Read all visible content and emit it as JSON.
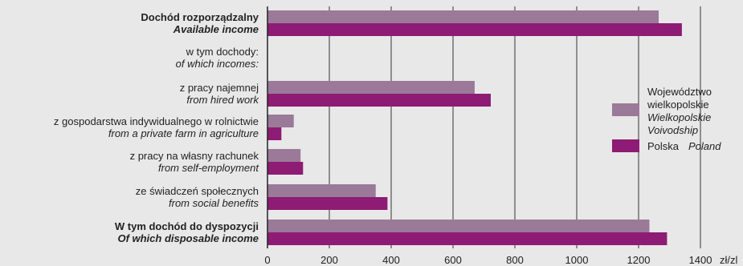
{
  "chart_data": {
    "type": "bar",
    "orientation": "horizontal",
    "categories": [
      {
        "pl": "Dochód rozporządzalny",
        "en": "Available income",
        "bold": true
      },
      {
        "pl": "w tym dochody:",
        "en": "of which incomes:",
        "bold": false,
        "header": true
      },
      {
        "pl": "z pracy najemnej",
        "en": "from hired work",
        "bold": false
      },
      {
        "pl": "z gospodarstwa indywidualnego w rolnictwie",
        "en": "from a private farm in agriculture",
        "bold": false
      },
      {
        "pl": "z pracy na własny rachunek",
        "en": "from self-employment",
        "bold": false
      },
      {
        "pl": "ze świadczeń społecznych",
        "en": "from social benefits",
        "bold": false
      },
      {
        "pl": "W tym dochód do dyspozycji",
        "en": "Of which disposable income",
        "bold": true
      }
    ],
    "series": [
      {
        "name_lines": [
          "Województwo",
          "wielkopolskie",
          "Wielkopolskie",
          "Voivodship"
        ],
        "name_italic": [
          false,
          false,
          true,
          true
        ],
        "color": "#9a7a98",
        "values": [
          1265,
          null,
          670,
          85,
          107,
          350,
          1235
        ]
      },
      {
        "name_pl": "Polska",
        "name_en": "Poland",
        "color": "#8e1b74",
        "values": [
          1340,
          null,
          722,
          45,
          115,
          388,
          1292
        ]
      }
    ],
    "xlim": [
      0,
      1400
    ],
    "xticks": [
      "0",
      "200",
      "400",
      "600",
      "800",
      "1000",
      "1200",
      "1400"
    ],
    "xunit": "zł/zl",
    "grid": true,
    "legend_position": "right"
  }
}
